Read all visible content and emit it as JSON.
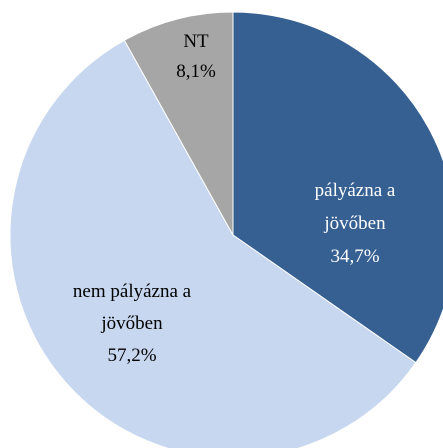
{
  "chart_data": {
    "type": "pie",
    "categories": [
      "pályázna a jövőben",
      "nem pályázna a jövőben",
      "NT"
    ],
    "values": [
      34.7,
      57.2,
      8.1
    ],
    "value_labels": [
      "34,7%",
      "57,2%",
      "8,1%"
    ],
    "colors": [
      "#366092",
      "#c6d7ef",
      "#a6a6a6"
    ],
    "label_colors": [
      "#ffffff",
      "#000000",
      "#000000"
    ]
  }
}
